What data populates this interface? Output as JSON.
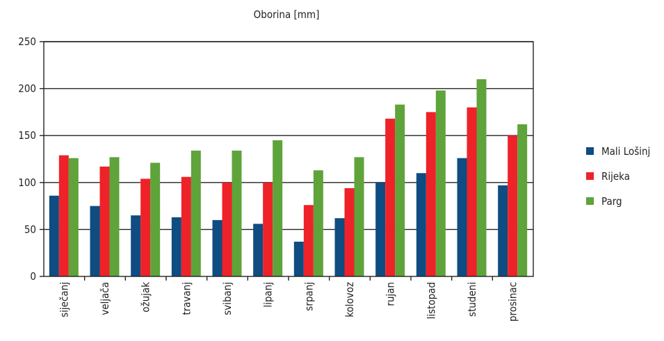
{
  "chart_data": {
    "type": "bar",
    "title": "Oborina [mm]",
    "xlabel": "",
    "ylabel": "",
    "ylim": [
      0,
      250
    ],
    "yticks": [
      0,
      50,
      100,
      150,
      200,
      250
    ],
    "grid": true,
    "legend_position": "right",
    "categories": [
      "siječanj",
      "veljača",
      "ožujak",
      "travanj",
      "svibanj",
      "lipanj",
      "srpanj",
      "kolovoz",
      "rujan",
      "listopad",
      "studeni",
      "prosinac"
    ],
    "series": [
      {
        "name": "Mali Lošinj",
        "color": "#0f4c81",
        "values": [
          86,
          75,
          65,
          63,
          60,
          56,
          37,
          62,
          100,
          110,
          126,
          97
        ]
      },
      {
        "name": "Rijeka",
        "color": "#ee2229",
        "values": [
          129,
          117,
          104,
          106,
          100,
          100,
          76,
          94,
          168,
          175,
          180,
          150
        ]
      },
      {
        "name": "Parg",
        "color": "#5fa33b",
        "values": [
          126,
          127,
          121,
          134,
          134,
          145,
          113,
          127,
          183,
          198,
          210,
          162
        ]
      }
    ]
  }
}
